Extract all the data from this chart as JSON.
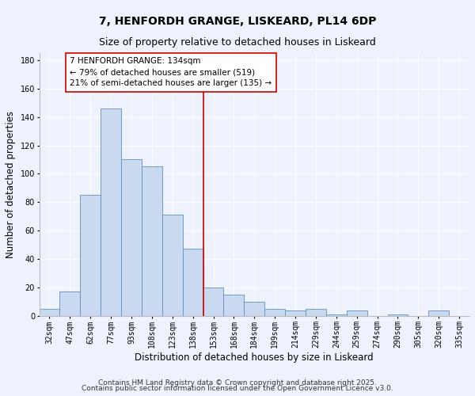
{
  "title": "7, HENFORDH GRANGE, LISKEARD, PL14 6DP",
  "subtitle": "Size of property relative to detached houses in Liskeard",
  "xlabel": "Distribution of detached houses by size in Liskeard",
  "ylabel": "Number of detached properties",
  "bar_labels": [
    "32sqm",
    "47sqm",
    "62sqm",
    "77sqm",
    "93sqm",
    "108sqm",
    "123sqm",
    "138sqm",
    "153sqm",
    "168sqm",
    "184sqm",
    "199sqm",
    "214sqm",
    "229sqm",
    "244sqm",
    "259sqm",
    "274sqm",
    "290sqm",
    "305sqm",
    "320sqm",
    "335sqm"
  ],
  "bar_values": [
    5,
    17,
    85,
    146,
    110,
    105,
    71,
    47,
    20,
    15,
    10,
    5,
    4,
    5,
    1,
    4,
    0,
    1,
    0,
    4,
    0
  ],
  "bar_color": "#c9d9f0",
  "bar_edge_color": "#6090c0",
  "vline_color": "#cc0000",
  "vline_x": 7.5,
  "annotation_text": "7 HENFORDH GRANGE: 134sqm\n← 79% of detached houses are smaller (519)\n21% of semi-detached houses are larger (135) →",
  "annotation_box_color": "#ffffff",
  "annotation_box_edge_color": "#cc0000",
  "ylim": [
    0,
    185
  ],
  "yticks": [
    0,
    20,
    40,
    60,
    80,
    100,
    120,
    140,
    160,
    180
  ],
  "background_color": "#eef2fc",
  "grid_color": "#ffffff",
  "footer_line1": "Contains HM Land Registry data © Crown copyright and database right 2025.",
  "footer_line2": "Contains public sector information licensed under the Open Government Licence v3.0.",
  "title_fontsize": 10,
  "subtitle_fontsize": 9,
  "xlabel_fontsize": 8.5,
  "ylabel_fontsize": 8.5,
  "tick_fontsize": 7,
  "annot_fontsize": 7.5,
  "footer_fontsize": 6.5
}
